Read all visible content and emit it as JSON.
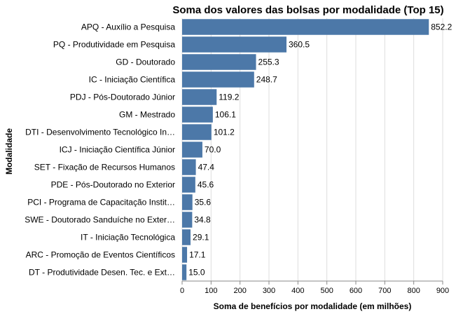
{
  "chart_data": {
    "type": "bar",
    "orientation": "horizontal",
    "title": "Soma dos valores das bolsas por modalidade (Top 15)",
    "xlabel": "Soma de benefícios por modalidade (em milhões)",
    "ylabel": "Modalidade",
    "xlim": [
      0,
      900
    ],
    "x_ticks": [
      "0",
      "100",
      "200",
      "300",
      "400",
      "500",
      "600",
      "700",
      "800",
      "900"
    ],
    "grid": true,
    "bar_color": "#4c78a8",
    "categories": [
      "APQ - Auxílio a Pesquisa",
      "PQ - Produtividade em Pesquisa",
      "GD - Doutorado",
      "IC - Iniciação Científica",
      "PDJ - Pós-Doutorado Júnior",
      "GM - Mestrado",
      "DTI - Desenvolvimento Tecnológico In…",
      "ICJ - Iniciação Científica Júnior",
      "SET - Fixação de Recursos Humanos",
      "PDE - Pós-Doutorado no Exterior",
      "PCI - Programa de Capacitação Instit…",
      "SWE - Doutorado Sanduíche no Exter…",
      "IT - Iniciação Tecnológica",
      "ARC - Promoção de Eventos Científicos",
      "DT - Produtividade Desen. Tec. e Ext…"
    ],
    "values": [
      852.2,
      360.5,
      255.3,
      248.7,
      119.2,
      106.1,
      101.2,
      70.0,
      47.4,
      45.6,
      35.6,
      34.8,
      29.1,
      17.1,
      15.0
    ],
    "value_labels": [
      "852.2",
      "360.5",
      "255.3",
      "248.7",
      "119.2",
      "106.1",
      "101.2",
      "70.0",
      "47.4",
      "45.6",
      "35.6",
      "34.8",
      "29.1",
      "17.1",
      "15.0"
    ]
  }
}
